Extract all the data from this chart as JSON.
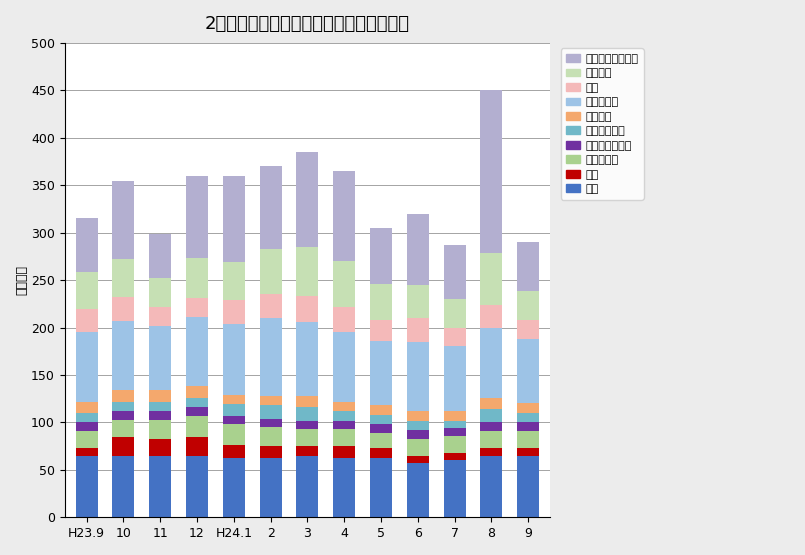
{
  "title": "2人以上の勤労世帯の平均消費支出の内訳",
  "ylabel": "（千円）",
  "categories": [
    "H23.9",
    "10",
    "11",
    "12",
    "H24.1",
    "2",
    "3",
    "4",
    "5",
    "6",
    "7",
    "8",
    "9"
  ],
  "ylim": [
    0,
    500
  ],
  "yticks": [
    0,
    50,
    100,
    150,
    200,
    250,
    300,
    350,
    400,
    450,
    500
  ],
  "legend_labels": [
    "その他の消費支出",
    "教養娯楽",
    "教育",
    "交通・通信",
    "保健医療",
    "被服及び履物",
    "家具・家事用品",
    "光熱・水道",
    "住居",
    "食料"
  ],
  "colors": [
    "#b3afd0",
    "#c6e0b4",
    "#f4b9b9",
    "#9dc3e6",
    "#f4a86d",
    "#70b8c8",
    "#7030a0",
    "#a9d18e",
    "#c00000",
    "#4472c4"
  ],
  "bottom_order": [
    "食料",
    "住居",
    "光熱・水道",
    "家具・家事用品",
    "被服及び履物",
    "保健医療",
    "交通・通信",
    "教育",
    "教養娯楽",
    "その他の消費支出"
  ],
  "data": {
    "食料": [
      65,
      65,
      65,
      65,
      63,
      63,
      65,
      63,
      63,
      57,
      60,
      65,
      65
    ],
    "住居": [
      8,
      20,
      18,
      20,
      13,
      12,
      10,
      12,
      10,
      8,
      8,
      8,
      8
    ],
    "光熱・水道": [
      18,
      18,
      20,
      22,
      22,
      20,
      18,
      18,
      16,
      18,
      18,
      18,
      18
    ],
    "家具・家事用品": [
      9,
      9,
      9,
      9,
      9,
      9,
      9,
      9,
      9,
      9,
      8,
      9,
      9
    ],
    "被服及び履物": [
      10,
      10,
      10,
      10,
      12,
      14,
      14,
      10,
      10,
      10,
      8,
      14,
      10
    ],
    "保健医療": [
      12,
      12,
      12,
      12,
      10,
      10,
      12,
      10,
      10,
      10,
      10,
      12,
      10
    ],
    "交通・通信": [
      73,
      73,
      68,
      73,
      75,
      82,
      78,
      73,
      68,
      73,
      68,
      73,
      68
    ],
    "教育": [
      25,
      25,
      20,
      20,
      25,
      25,
      27,
      27,
      22,
      25,
      20,
      25,
      20
    ],
    "教養娯楽": [
      38,
      40,
      30,
      42,
      40,
      48,
      52,
      48,
      38,
      35,
      30,
      55,
      30
    ],
    "その他の消費支出": [
      57,
      82,
      47,
      87,
      91,
      87,
      100,
      95,
      59,
      75,
      57,
      171,
      52
    ]
  }
}
